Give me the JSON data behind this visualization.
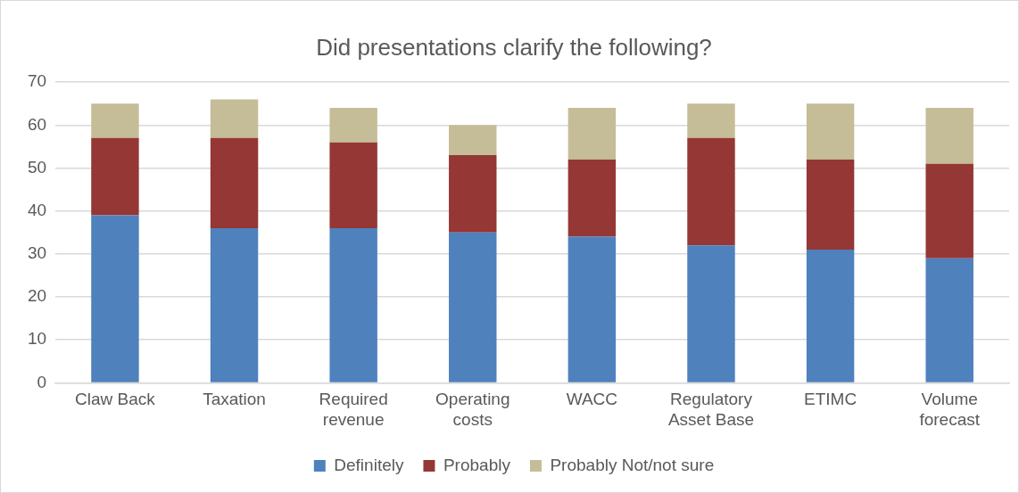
{
  "chart_data": {
    "type": "bar",
    "title": "Did presentations clarify the following?",
    "categories": [
      "Claw Back",
      "Taxation",
      "Required revenue",
      "Operating costs",
      "WACC",
      "Regulatory Asset Base",
      "ETIMC",
      "Volume forecast"
    ],
    "series": [
      {
        "name": "Definitely",
        "color": "#4f81bd",
        "values": [
          39,
          36,
          36,
          35,
          34,
          32,
          31,
          29
        ]
      },
      {
        "name": "Probably",
        "color": "#953735",
        "values": [
          18,
          21,
          20,
          18,
          18,
          25,
          21,
          22
        ]
      },
      {
        "name": "Probably Not/not sure",
        "color": "#c4bd97",
        "values": [
          8,
          9,
          8,
          7,
          12,
          8,
          13,
          13
        ]
      }
    ],
    "stacked": true,
    "ylim": [
      0,
      70
    ],
    "yticks": [
      0,
      10,
      20,
      30,
      40,
      50,
      60,
      70
    ],
    "grid": "y",
    "legend": "bottom"
  }
}
